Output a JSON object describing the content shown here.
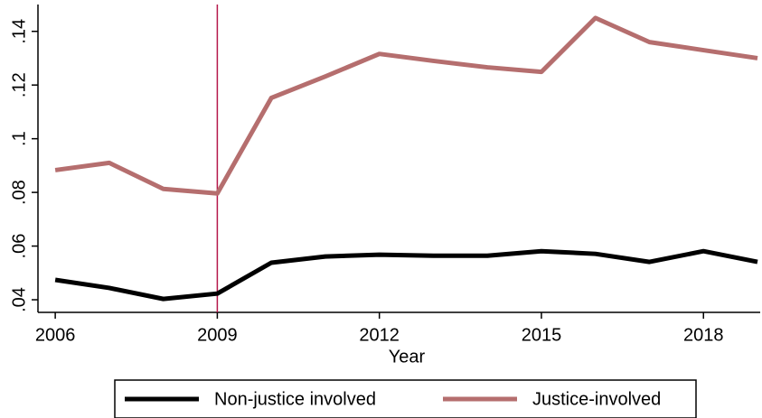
{
  "chart_data": {
    "type": "line",
    "x_label": "Year",
    "x": [
      2006,
      2007,
      2008,
      2009,
      2010,
      2011,
      2012,
      2013,
      2014,
      2015,
      2016,
      2017,
      2018,
      2019
    ],
    "series": [
      {
        "name": "Non-justice involved",
        "color": "#000000",
        "values": [
          0.0474,
          0.0444,
          0.0403,
          0.0423,
          0.0538,
          0.0561,
          0.0568,
          0.0564,
          0.0564,
          0.0581,
          0.0571,
          0.0541,
          0.0581,
          0.0541
        ]
      },
      {
        "name": "Justice-involved",
        "color": "#b56e6e",
        "values": [
          0.0883,
          0.091,
          0.0813,
          0.0796,
          0.1152,
          0.1232,
          0.1316,
          0.129,
          0.1266,
          0.1249,
          0.145,
          0.136,
          0.133,
          0.13
        ]
      }
    ],
    "xlim": [
      2005.68,
      2019.05
    ],
    "xticks": [
      2006,
      2009,
      2012,
      2015,
      2018
    ],
    "ylim": [
      0.0353,
      0.15
    ],
    "yticks": [
      {
        "value": 0.04,
        "label": ".04"
      },
      {
        "value": 0.06,
        "label": ".06"
      },
      {
        "value": 0.08,
        "label": ".08"
      },
      {
        "value": 0.1,
        "label": ".1"
      },
      {
        "value": 0.12,
        "label": ".12"
      },
      {
        "value": 0.14,
        "label": ".14"
      }
    ],
    "vline": 2009,
    "vline_color": "#b5174a",
    "legend": "bottom",
    "grid": false
  }
}
